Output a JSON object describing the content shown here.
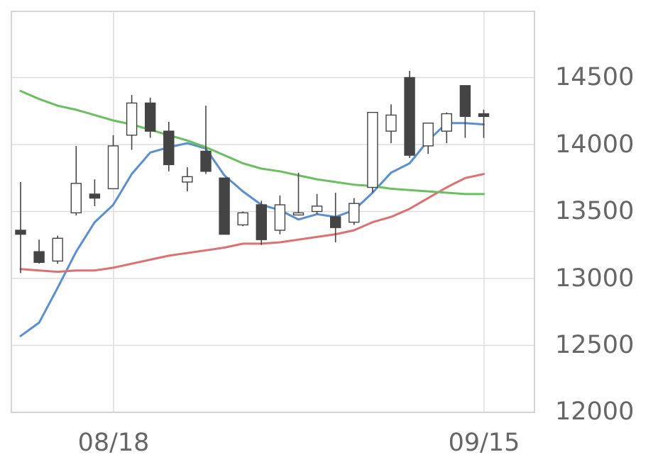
{
  "chart_data": {
    "type": "candlestick",
    "x_tick_labels": [
      "08/18",
      "09/15"
    ],
    "y_tick_labels": [
      "12000",
      "12500",
      "13000",
      "13500",
      "14000",
      "14500"
    ],
    "ylim": [
      12000,
      15000
    ],
    "grid": true,
    "y_axis_position": "right",
    "colors": {
      "up_body": "#ffffff",
      "down_body": "#444444",
      "wick": "#444444",
      "ma_short": "#5b8fd4",
      "ma_mid": "#e07070",
      "ma_long": "#6abf5e"
    },
    "candles": [
      {
        "o": 13360,
        "h": 13720,
        "l": 13040,
        "c": 13330
      },
      {
        "o": 13200,
        "h": 13290,
        "l": 13110,
        "c": 13120
      },
      {
        "o": 13130,
        "h": 13320,
        "l": 13110,
        "c": 13300
      },
      {
        "o": 13490,
        "h": 13990,
        "l": 13470,
        "c": 13710
      },
      {
        "o": 13630,
        "h": 13740,
        "l": 13540,
        "c": 13600
      },
      {
        "o": 13670,
        "h": 14070,
        "l": 13670,
        "c": 13990
      },
      {
        "o": 14070,
        "h": 14370,
        "l": 13960,
        "c": 14310
      },
      {
        "o": 14310,
        "h": 14350,
        "l": 14050,
        "c": 14100
      },
      {
        "o": 14100,
        "h": 14170,
        "l": 13800,
        "c": 13850
      },
      {
        "o": 13720,
        "h": 13830,
        "l": 13650,
        "c": 13760
      },
      {
        "o": 13950,
        "h": 14290,
        "l": 13780,
        "c": 13800
      },
      {
        "o": 13750,
        "h": 13750,
        "l": 13330,
        "c": 13330
      },
      {
        "o": 13400,
        "h": 13500,
        "l": 13390,
        "c": 13490
      },
      {
        "o": 13550,
        "h": 13580,
        "l": 13250,
        "c": 13290
      },
      {
        "o": 13360,
        "h": 13620,
        "l": 13330,
        "c": 13550
      },
      {
        "o": 13480,
        "h": 13790,
        "l": 13470,
        "c": 13490
      },
      {
        "o": 13500,
        "h": 13630,
        "l": 13480,
        "c": 13540
      },
      {
        "o": 13460,
        "h": 13640,
        "l": 13270,
        "c": 13380
      },
      {
        "o": 13420,
        "h": 13600,
        "l": 13400,
        "c": 13560
      },
      {
        "o": 13680,
        "h": 14240,
        "l": 13640,
        "c": 14240
      },
      {
        "o": 14100,
        "h": 14300,
        "l": 14010,
        "c": 14220
      },
      {
        "o": 14500,
        "h": 14550,
        "l": 13900,
        "c": 13920
      },
      {
        "o": 13990,
        "h": 14160,
        "l": 13930,
        "c": 14160
      },
      {
        "o": 14100,
        "h": 14240,
        "l": 14010,
        "c": 14230
      },
      {
        "o": 14440,
        "h": 14440,
        "l": 14050,
        "c": 14210
      },
      {
        "o": 14230,
        "h": 14260,
        "l": 14050,
        "c": 14210
      }
    ],
    "series": [
      {
        "key": "ma_short",
        "values": [
          12570,
          12670,
          12930,
          13200,
          13420,
          13550,
          13780,
          13940,
          13980,
          14010,
          13970,
          13770,
          13650,
          13550,
          13510,
          13440,
          13480,
          13460,
          13510,
          13640,
          13790,
          13860,
          14030,
          14160,
          14160,
          14150
        ]
      },
      {
        "key": "ma_mid",
        "values": [
          13070,
          13060,
          13050,
          13060,
          13060,
          13080,
          13110,
          13140,
          13170,
          13190,
          13210,
          13230,
          13260,
          13260,
          13270,
          13290,
          13310,
          13330,
          13360,
          13420,
          13460,
          13520,
          13600,
          13680,
          13750,
          13780
        ]
      },
      {
        "key": "ma_long",
        "values": [
          14400,
          14340,
          14290,
          14260,
          14220,
          14180,
          14150,
          14110,
          14070,
          14030,
          13980,
          13920,
          13860,
          13820,
          13800,
          13770,
          13740,
          13720,
          13700,
          13690,
          13670,
          13660,
          13650,
          13640,
          13630,
          13630
        ]
      }
    ]
  }
}
